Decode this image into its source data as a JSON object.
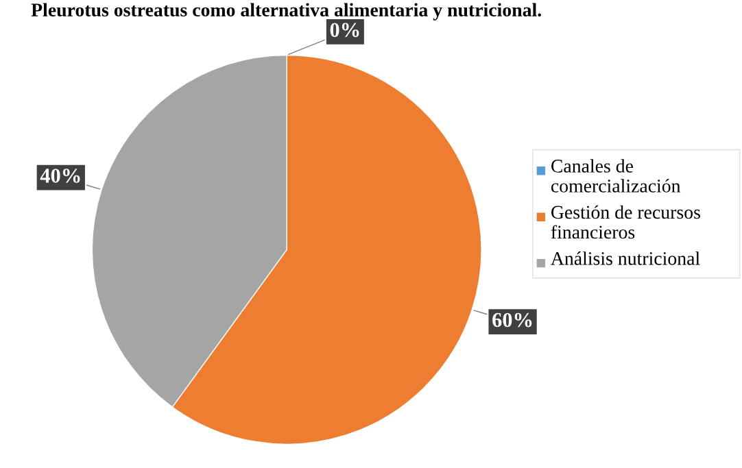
{
  "chart_data": {
    "type": "pie",
    "title": "Pleurotus ostreatus como alternativa alimentaria y nutricional.",
    "categories": [
      "Canales de comercialización",
      "Gestión de recursos financieros",
      "Análisis nutricional"
    ],
    "values": [
      0,
      60,
      40
    ],
    "colors": [
      "#5b9bd5",
      "#ed7d31",
      "#a5a5a5"
    ],
    "value_labels": [
      "0%",
      "60%",
      "40%"
    ],
    "legend": "right"
  }
}
